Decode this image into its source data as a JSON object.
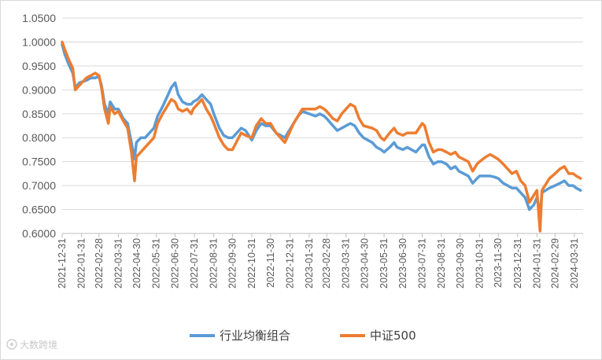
{
  "chart_data": {
    "type": "line",
    "title": "",
    "xlabel": "",
    "ylabel": "",
    "ylim": [
      0.6,
      1.05
    ],
    "y_ticks": [
      "0.6000",
      "0.6500",
      "0.7000",
      "0.7500",
      "0.8000",
      "0.8500",
      "0.9000",
      "0.9500",
      "1.0000",
      "1.0500"
    ],
    "x_ticks": [
      "2021-12-31",
      "2022-01-31",
      "2022-02-28",
      "2022-03-31",
      "2022-04-30",
      "2022-05-31",
      "2022-06-30",
      "2022-07-31",
      "2022-08-31",
      "2022-09-30",
      "2022-10-31",
      "2022-11-30",
      "2022-12-31",
      "2023-01-31",
      "2023-02-28",
      "2023-03-31",
      "2023-04-30",
      "2023-05-31",
      "2023-06-30",
      "2023-07-31",
      "2023-08-31",
      "2023-09-30",
      "2023-10-31",
      "2023-11-30",
      "2023-12-31",
      "2024-01-31",
      "2024-02-29",
      "2024-03-31"
    ],
    "grid": "horizontal",
    "legend_position": "bottom",
    "series": [
      {
        "name": "行业均衡组合",
        "color": "#5b9bd5",
        "points": [
          [
            "2021-12-31",
            0.995
          ],
          [
            "2022-01-04",
            0.975
          ],
          [
            "2022-01-10",
            0.955
          ],
          [
            "2022-01-17",
            0.935
          ],
          [
            "2022-01-21",
            0.905
          ],
          [
            "2022-01-28",
            0.915
          ],
          [
            "2022-02-08",
            0.92
          ],
          [
            "2022-02-15",
            0.925
          ],
          [
            "2022-02-22",
            0.925
          ],
          [
            "2022-02-28",
            0.928
          ],
          [
            "2022-03-04",
            0.91
          ],
          [
            "2022-03-09",
            0.87
          ],
          [
            "2022-03-15",
            0.85
          ],
          [
            "2022-03-18",
            0.875
          ],
          [
            "2022-03-25",
            0.86
          ],
          [
            "2022-03-31",
            0.86
          ],
          [
            "2022-04-08",
            0.84
          ],
          [
            "2022-04-15",
            0.83
          ],
          [
            "2022-04-21",
            0.79
          ],
          [
            "2022-04-26",
            0.755
          ],
          [
            "2022-04-29",
            0.79
          ],
          [
            "2022-05-06",
            0.8
          ],
          [
            "2022-05-13",
            0.8
          ],
          [
            "2022-05-20",
            0.81
          ],
          [
            "2022-05-27",
            0.82
          ],
          [
            "2022-06-02",
            0.845
          ],
          [
            "2022-06-10",
            0.865
          ],
          [
            "2022-06-17",
            0.885
          ],
          [
            "2022-06-24",
            0.905
          ],
          [
            "2022-06-30",
            0.915
          ],
          [
            "2022-07-05",
            0.89
          ],
          [
            "2022-07-12",
            0.875
          ],
          [
            "2022-07-19",
            0.87
          ],
          [
            "2022-07-26",
            0.87
          ],
          [
            "2022-07-29",
            0.875
          ],
          [
            "2022-08-05",
            0.88
          ],
          [
            "2022-08-12",
            0.89
          ],
          [
            "2022-08-19",
            0.88
          ],
          [
            "2022-08-26",
            0.87
          ],
          [
            "2022-08-31",
            0.85
          ],
          [
            "2022-09-09",
            0.82
          ],
          [
            "2022-09-16",
            0.805
          ],
          [
            "2022-09-23",
            0.8
          ],
          [
            "2022-09-30",
            0.8
          ],
          [
            "2022-10-14",
            0.82
          ],
          [
            "2022-10-21",
            0.815
          ],
          [
            "2022-10-31",
            0.795
          ],
          [
            "2022-11-07",
            0.815
          ],
          [
            "2022-11-15",
            0.83
          ],
          [
            "2022-11-22",
            0.825
          ],
          [
            "2022-11-30",
            0.825
          ],
          [
            "2022-12-09",
            0.81
          ],
          [
            "2022-12-16",
            0.805
          ],
          [
            "2022-12-23",
            0.8
          ],
          [
            "2022-12-30",
            0.815
          ],
          [
            "2023-01-06",
            0.83
          ],
          [
            "2023-01-13",
            0.845
          ],
          [
            "2023-01-20",
            0.855
          ],
          [
            "2023-01-31",
            0.85
          ],
          [
            "2023-02-10",
            0.845
          ],
          [
            "2023-02-17",
            0.85
          ],
          [
            "2023-02-24",
            0.845
          ],
          [
            "2023-02-28",
            0.84
          ],
          [
            "2023-03-10",
            0.825
          ],
          [
            "2023-03-17",
            0.815
          ],
          [
            "2023-03-24",
            0.82
          ],
          [
            "2023-03-31",
            0.825
          ],
          [
            "2023-04-07",
            0.83
          ],
          [
            "2023-04-14",
            0.825
          ],
          [
            "2023-04-21",
            0.81
          ],
          [
            "2023-04-28",
            0.8
          ],
          [
            "2023-05-12",
            0.79
          ],
          [
            "2023-05-19",
            0.78
          ],
          [
            "2023-05-26",
            0.775
          ],
          [
            "2023-05-31",
            0.77
          ],
          [
            "2023-06-09",
            0.78
          ],
          [
            "2023-06-16",
            0.79
          ],
          [
            "2023-06-21",
            0.78
          ],
          [
            "2023-06-30",
            0.775
          ],
          [
            "2023-07-07",
            0.78
          ],
          [
            "2023-07-14",
            0.775
          ],
          [
            "2023-07-21",
            0.77
          ],
          [
            "2023-07-31",
            0.785
          ],
          [
            "2023-08-04",
            0.785
          ],
          [
            "2023-08-11",
            0.76
          ],
          [
            "2023-08-18",
            0.745
          ],
          [
            "2023-08-25",
            0.75
          ],
          [
            "2023-08-31",
            0.75
          ],
          [
            "2023-09-08",
            0.745
          ],
          [
            "2023-09-15",
            0.735
          ],
          [
            "2023-09-22",
            0.74
          ],
          [
            "2023-09-28",
            0.73
          ],
          [
            "2023-10-13",
            0.72
          ],
          [
            "2023-10-20",
            0.705
          ],
          [
            "2023-10-27",
            0.715
          ],
          [
            "2023-10-31",
            0.72
          ],
          [
            "2023-11-10",
            0.72
          ],
          [
            "2023-11-17",
            0.72
          ],
          [
            "2023-11-24",
            0.718
          ],
          [
            "2023-11-30",
            0.715
          ],
          [
            "2023-12-08",
            0.705
          ],
          [
            "2023-12-15",
            0.7
          ],
          [
            "2023-12-22",
            0.695
          ],
          [
            "2023-12-29",
            0.695
          ],
          [
            "2024-01-05",
            0.685
          ],
          [
            "2024-01-12",
            0.675
          ],
          [
            "2024-01-19",
            0.65
          ],
          [
            "2024-01-26",
            0.66
          ],
          [
            "2024-01-31",
            0.675
          ],
          [
            "2024-02-05",
            0.64
          ],
          [
            "2024-02-08",
            0.685
          ],
          [
            "2024-02-20",
            0.695
          ],
          [
            "2024-02-29",
            0.7
          ],
          [
            "2024-03-08",
            0.705
          ],
          [
            "2024-03-15",
            0.71
          ],
          [
            "2024-03-22",
            0.7
          ],
          [
            "2024-03-29",
            0.7
          ],
          [
            "2024-04-03",
            0.695
          ],
          [
            "2024-04-10",
            0.69
          ]
        ]
      },
      {
        "name": "中证500",
        "color": "#ed7d31",
        "points": [
          [
            "2021-12-31",
            1.0
          ],
          [
            "2022-01-04",
            0.985
          ],
          [
            "2022-01-10",
            0.965
          ],
          [
            "2022-01-17",
            0.945
          ],
          [
            "2022-01-21",
            0.9
          ],
          [
            "2022-01-28",
            0.91
          ],
          [
            "2022-02-08",
            0.925
          ],
          [
            "2022-02-15",
            0.93
          ],
          [
            "2022-02-22",
            0.935
          ],
          [
            "2022-02-28",
            0.93
          ],
          [
            "2022-03-04",
            0.905
          ],
          [
            "2022-03-09",
            0.86
          ],
          [
            "2022-03-15",
            0.83
          ],
          [
            "2022-03-18",
            0.865
          ],
          [
            "2022-03-25",
            0.85
          ],
          [
            "2022-03-31",
            0.855
          ],
          [
            "2022-04-08",
            0.835
          ],
          [
            "2022-04-15",
            0.82
          ],
          [
            "2022-04-21",
            0.77
          ],
          [
            "2022-04-26",
            0.71
          ],
          [
            "2022-04-29",
            0.76
          ],
          [
            "2022-05-06",
            0.77
          ],
          [
            "2022-05-13",
            0.78
          ],
          [
            "2022-05-20",
            0.79
          ],
          [
            "2022-05-27",
            0.8
          ],
          [
            "2022-06-02",
            0.83
          ],
          [
            "2022-06-10",
            0.85
          ],
          [
            "2022-06-17",
            0.865
          ],
          [
            "2022-06-24",
            0.88
          ],
          [
            "2022-06-30",
            0.875
          ],
          [
            "2022-07-05",
            0.86
          ],
          [
            "2022-07-12",
            0.855
          ],
          [
            "2022-07-19",
            0.86
          ],
          [
            "2022-07-26",
            0.85
          ],
          [
            "2022-07-29",
            0.86
          ],
          [
            "2022-08-05",
            0.87
          ],
          [
            "2022-08-12",
            0.88
          ],
          [
            "2022-08-19",
            0.86
          ],
          [
            "2022-08-26",
            0.845
          ],
          [
            "2022-08-31",
            0.83
          ],
          [
            "2022-09-09",
            0.8
          ],
          [
            "2022-09-16",
            0.785
          ],
          [
            "2022-09-23",
            0.775
          ],
          [
            "2022-09-30",
            0.775
          ],
          [
            "2022-10-14",
            0.81
          ],
          [
            "2022-10-21",
            0.805
          ],
          [
            "2022-10-31",
            0.8
          ],
          [
            "2022-11-07",
            0.825
          ],
          [
            "2022-11-15",
            0.84
          ],
          [
            "2022-11-22",
            0.83
          ],
          [
            "2022-11-30",
            0.83
          ],
          [
            "2022-12-09",
            0.81
          ],
          [
            "2022-12-16",
            0.8
          ],
          [
            "2022-12-23",
            0.79
          ],
          [
            "2022-12-30",
            0.81
          ],
          [
            "2023-01-06",
            0.83
          ],
          [
            "2023-01-13",
            0.845
          ],
          [
            "2023-01-20",
            0.86
          ],
          [
            "2023-01-31",
            0.86
          ],
          [
            "2023-02-10",
            0.86
          ],
          [
            "2023-02-17",
            0.865
          ],
          [
            "2023-02-24",
            0.86
          ],
          [
            "2023-02-28",
            0.855
          ],
          [
            "2023-03-10",
            0.84
          ],
          [
            "2023-03-17",
            0.835
          ],
          [
            "2023-03-24",
            0.85
          ],
          [
            "2023-03-31",
            0.86
          ],
          [
            "2023-04-07",
            0.87
          ],
          [
            "2023-04-14",
            0.865
          ],
          [
            "2023-04-21",
            0.84
          ],
          [
            "2023-04-28",
            0.825
          ],
          [
            "2023-05-12",
            0.82
          ],
          [
            "2023-05-19",
            0.815
          ],
          [
            "2023-05-26",
            0.8
          ],
          [
            "2023-05-31",
            0.795
          ],
          [
            "2023-06-09",
            0.81
          ],
          [
            "2023-06-16",
            0.82
          ],
          [
            "2023-06-21",
            0.81
          ],
          [
            "2023-06-30",
            0.805
          ],
          [
            "2023-07-07",
            0.81
          ],
          [
            "2023-07-14",
            0.81
          ],
          [
            "2023-07-21",
            0.81
          ],
          [
            "2023-07-31",
            0.83
          ],
          [
            "2023-08-04",
            0.825
          ],
          [
            "2023-08-11",
            0.79
          ],
          [
            "2023-08-18",
            0.77
          ],
          [
            "2023-08-25",
            0.775
          ],
          [
            "2023-08-31",
            0.775
          ],
          [
            "2023-09-08",
            0.77
          ],
          [
            "2023-09-15",
            0.765
          ],
          [
            "2023-09-22",
            0.77
          ],
          [
            "2023-09-28",
            0.76
          ],
          [
            "2023-10-13",
            0.75
          ],
          [
            "2023-10-20",
            0.73
          ],
          [
            "2023-10-27",
            0.745
          ],
          [
            "2023-10-31",
            0.75
          ],
          [
            "2023-11-10",
            0.76
          ],
          [
            "2023-11-17",
            0.765
          ],
          [
            "2023-11-24",
            0.76
          ],
          [
            "2023-11-30",
            0.755
          ],
          [
            "2023-12-08",
            0.745
          ],
          [
            "2023-12-15",
            0.735
          ],
          [
            "2023-12-22",
            0.725
          ],
          [
            "2023-12-29",
            0.73
          ],
          [
            "2024-01-05",
            0.71
          ],
          [
            "2024-01-12",
            0.7
          ],
          [
            "2024-01-19",
            0.665
          ],
          [
            "2024-01-26",
            0.68
          ],
          [
            "2024-01-31",
            0.69
          ],
          [
            "2024-02-05",
            0.605
          ],
          [
            "2024-02-08",
            0.69
          ],
          [
            "2024-02-20",
            0.715
          ],
          [
            "2024-02-29",
            0.725
          ],
          [
            "2024-03-08",
            0.735
          ],
          [
            "2024-03-15",
            0.74
          ],
          [
            "2024-03-22",
            0.725
          ],
          [
            "2024-03-29",
            0.725
          ],
          [
            "2024-04-03",
            0.72
          ],
          [
            "2024-04-10",
            0.715
          ]
        ]
      }
    ]
  },
  "legend": {
    "items": [
      {
        "label": "行业均衡组合"
      },
      {
        "label": "中证500"
      }
    ]
  },
  "watermark": {
    "text": "大数跨境"
  }
}
